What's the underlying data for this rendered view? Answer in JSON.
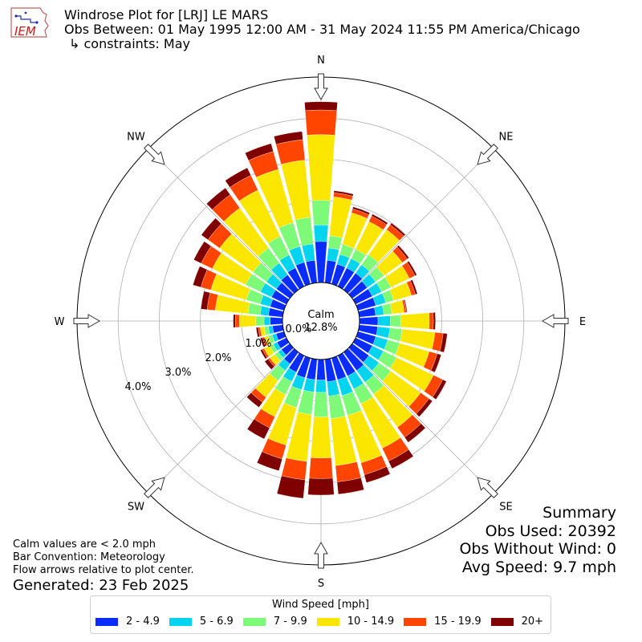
{
  "header": {
    "title": "Windrose Plot for [LRJ] LE MARS",
    "obs_between": "Obs Between: 01 May 1995 12:00 AM - 31 May 2024 11:55 PM America/Chicago",
    "constraints": "↳ constraints: May",
    "logo_text": "IEM"
  },
  "notes": {
    "calm": "Calm values are < 2.0 mph",
    "convention": "Bar Convention: Meteorology",
    "flow": "Flow arrows relative to plot center.",
    "generated": "Generated: 23 Feb 2025"
  },
  "summary": {
    "title": "Summary",
    "obs_used": "Obs Used: 20392",
    "obs_without_wind": "Obs Without Wind: 0",
    "avg_speed": "Avg Speed: 9.7 mph"
  },
  "legend": {
    "title": "Wind Speed [mph]"
  },
  "chart_data": {
    "type": "windrose",
    "calm_label": "Calm",
    "calm_percent": "12.8%",
    "radial_ticks": [
      0,
      1,
      2,
      3,
      4
    ],
    "radial_tick_labels": [
      "0.0%",
      "1.0%",
      "2.0%",
      "3.0%",
      "4.0%"
    ],
    "rmax_percent": 5.0,
    "directions": [
      "N",
      "NNE",
      "NE",
      "ENE",
      "E",
      "ESE",
      "SE",
      "SSE",
      "S",
      "SSW",
      "SW",
      "WSW",
      "W",
      "WNW",
      "NW",
      "NNW"
    ],
    "compass_labels": [
      "N",
      "NE",
      "E",
      "SE",
      "S",
      "SW",
      "W",
      "NW"
    ],
    "subsectors_per_direction": 2,
    "speed_bins": [
      {
        "label": "2 - 4.9",
        "color": "#0a2cfa"
      },
      {
        "label": "5 - 6.9",
        "color": "#00d4ee"
      },
      {
        "label": "7 - 9.9",
        "color": "#7dfb78"
      },
      {
        "label": "10 - 14.9",
        "color": "#fbe600"
      },
      {
        "label": "15 - 19.9",
        "color": "#ff4500"
      },
      {
        "label": "20+",
        "color": "#7e0000"
      }
    ],
    "sectors": [
      {
        "dir": 0,
        "values": [
          1.0,
          0.4,
          0.6,
          1.6,
          0.6,
          0.2
        ]
      },
      {
        "dir": 10,
        "values": [
          0.55,
          0.3,
          0.3,
          0.95,
          0.1,
          0.05
        ]
      },
      {
        "dir": 20,
        "values": [
          0.5,
          0.25,
          0.25,
          0.8,
          0.1,
          0.05
        ]
      },
      {
        "dir": 30,
        "values": [
          0.5,
          0.25,
          0.25,
          0.75,
          0.15,
          0.05
        ]
      },
      {
        "dir": 40,
        "values": [
          0.5,
          0.25,
          0.3,
          0.75,
          0.15,
          0.05
        ]
      },
      {
        "dir": 50,
        "values": [
          0.45,
          0.25,
          0.25,
          0.55,
          0.15,
          0.05
        ]
      },
      {
        "dir": 60,
        "values": [
          0.45,
          0.25,
          0.25,
          0.5,
          0.15,
          0.05
        ]
      },
      {
        "dir": 70,
        "values": [
          0.45,
          0.25,
          0.2,
          0.45,
          0.1,
          0.05
        ]
      },
      {
        "dir": 80,
        "values": [
          0.4,
          0.2,
          0.2,
          0.3,
          0.05,
          0.02
        ]
      },
      {
        "dir": 90,
        "values": [
          0.45,
          0.3,
          0.25,
          0.7,
          0.1,
          0.05
        ]
      },
      {
        "dir": 100,
        "values": [
          0.45,
          0.3,
          0.3,
          0.8,
          0.2,
          0.1
        ]
      },
      {
        "dir": 110,
        "values": [
          0.45,
          0.3,
          0.3,
          0.75,
          0.2,
          0.1
        ]
      },
      {
        "dir": 120,
        "values": [
          0.45,
          0.3,
          0.35,
          1.0,
          0.25,
          0.1
        ]
      },
      {
        "dir": 130,
        "values": [
          0.5,
          0.3,
          0.35,
          0.9,
          0.25,
          0.1
        ]
      },
      {
        "dir": 140,
        "values": [
          0.55,
          0.35,
          0.35,
          1.0,
          0.3,
          0.15
        ]
      },
      {
        "dir": 150,
        "values": [
          0.55,
          0.35,
          0.4,
          1.2,
          0.35,
          0.2
        ]
      },
      {
        "dir": 160,
        "values": [
          0.55,
          0.4,
          0.5,
          1.2,
          0.3,
          0.2
        ]
      },
      {
        "dir": 170,
        "values": [
          0.55,
          0.35,
          0.55,
          1.15,
          0.4,
          0.3
        ]
      },
      {
        "dir": 180,
        "values": [
          0.5,
          0.3,
          0.6,
          1.0,
          0.5,
          0.4
        ]
      },
      {
        "dir": 190,
        "values": [
          0.5,
          0.3,
          0.55,
          1.15,
          0.45,
          0.45
        ]
      },
      {
        "dir": 200,
        "values": [
          0.5,
          0.3,
          0.45,
          0.95,
          0.35,
          0.3
        ]
      },
      {
        "dir": 210,
        "values": [
          0.45,
          0.25,
          0.35,
          0.6,
          0.3,
          0.3
        ]
      },
      {
        "dir": 220,
        "values": [
          0.35,
          0.2,
          0.3,
          0.5,
          0.15,
          0.15
        ]
      },
      {
        "dir": 230,
        "values": [
          0.25,
          0.1,
          0.1,
          0.15,
          0.05,
          0.1
        ]
      },
      {
        "dir": 240,
        "values": [
          0.25,
          0.1,
          0.1,
          0.15,
          0.05,
          0.05
        ]
      },
      {
        "dir": 250,
        "values": [
          0.2,
          0.1,
          0.1,
          0.1,
          0.05,
          0.05
        ]
      },
      {
        "dir": 260,
        "values": [
          0.25,
          0.1,
          0.1,
          0.1,
          0.05,
          0.05
        ]
      },
      {
        "dir": 270,
        "values": [
          0.3,
          0.15,
          0.2,
          0.4,
          0.1,
          0.05
        ]
      },
      {
        "dir": 280,
        "values": [
          0.35,
          0.2,
          0.3,
          0.8,
          0.2,
          0.15
        ]
      },
      {
        "dir": 290,
        "values": [
          0.35,
          0.25,
          0.35,
          0.9,
          0.25,
          0.2
        ]
      },
      {
        "dir": 300,
        "values": [
          0.4,
          0.3,
          0.4,
          0.9,
          0.3,
          0.2
        ]
      },
      {
        "dir": 310,
        "values": [
          0.4,
          0.3,
          0.4,
          1.0,
          0.35,
          0.2
        ]
      },
      {
        "dir": 320,
        "values": [
          0.45,
          0.35,
          0.45,
          1.2,
          0.4,
          0.2
        ]
      },
      {
        "dir": 330,
        "values": [
          0.5,
          0.35,
          0.5,
          1.25,
          0.4,
          0.2
        ]
      },
      {
        "dir": 340,
        "values": [
          0.55,
          0.4,
          0.6,
          1.35,
          0.45,
          0.2
        ]
      },
      {
        "dir": 350,
        "values": [
          0.55,
          0.4,
          0.65,
          1.4,
          0.5,
          0.2
        ]
      }
    ]
  }
}
